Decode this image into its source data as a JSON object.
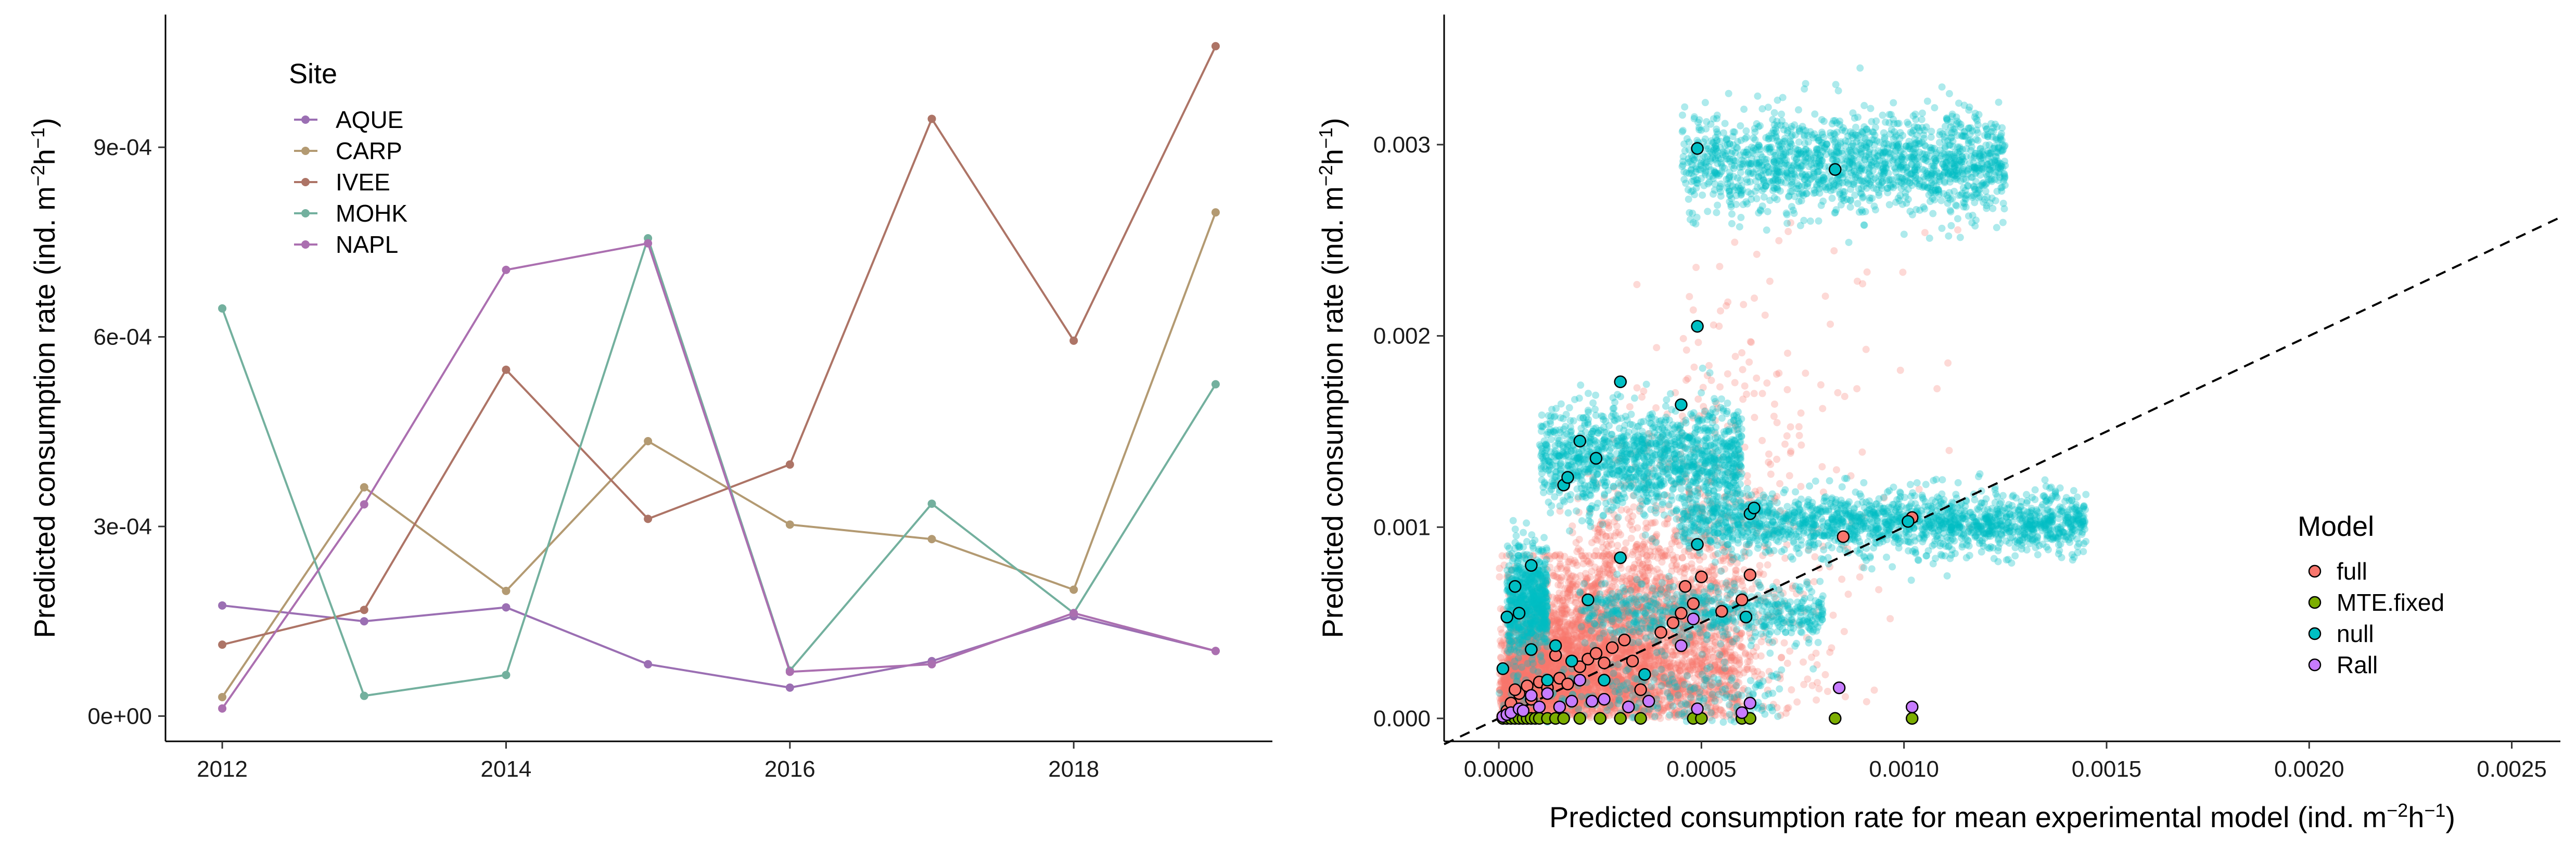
{
  "chart_data": [
    {
      "type": "line",
      "title": "",
      "xlabel": "",
      "ylabel": "Predicted consumption rate (ind. m⁻²h⁻¹)",
      "x_ticks": [
        "2012",
        "2014",
        "2016",
        "2018"
      ],
      "y_ticks": [
        "0e+00",
        "3e-04",
        "6e-04",
        "9e-04"
      ],
      "xlim": [
        2011.6,
        2019.4
      ],
      "ylim": [
        -4e-05,
        0.00111
      ],
      "legend": {
        "title": "Site",
        "placement": "top-left"
      },
      "x": [
        2012,
        2013,
        2014,
        2015,
        2016,
        2017,
        2018,
        2019
      ],
      "series": [
        {
          "name": "AQUE",
          "color": "#9b6fb3",
          "values": [
            0.000175,
            0.00015,
            0.000172,
            8.2e-05,
            4.5e-05,
            8.7e-05,
            0.000158,
            0.000103
          ]
        },
        {
          "name": "CARP",
          "color": "#b39a72",
          "values": [
            3e-05,
            0.000362,
            0.000198,
            0.000435,
            0.000303,
            0.00028,
            0.0002,
            0.000797
          ]
        },
        {
          "name": "IVEE",
          "color": "#ad7466",
          "values": [
            0.000113,
            0.000168,
            0.000548,
            0.000312,
            0.000398,
            0.000945,
            0.000594,
            0.00106
          ]
        },
        {
          "name": "MOHK",
          "color": "#73b09e",
          "values": [
            0.000645,
            3.2e-05,
            6.5e-05,
            0.000756,
            7.2e-05,
            0.000336,
            0.000163,
            0.000525
          ]
        },
        {
          "name": "NAPL",
          "color": "#ab6fb0",
          "values": [
            1.2e-05,
            0.000335,
            0.000706,
            0.000748,
            7e-05,
            8.2e-05,
            0.000163,
            0.000103
          ]
        }
      ]
    },
    {
      "type": "scatter",
      "title": "",
      "xlabel": "Predicted consumption rate for mean experimental model (ind. m⁻²h⁻¹)",
      "ylabel": "Predicted consumption rate (ind. m⁻²h⁻¹)",
      "x_ticks": [
        "0.0000",
        "0.0005",
        "0.0010",
        "0.0015",
        "0.0020",
        "0.0025"
      ],
      "y_ticks": [
        "0.000",
        "0.001",
        "0.002",
        "0.003"
      ],
      "xlim": [
        -0.000135,
        0.00262
      ],
      "ylim": [
        -0.00012,
        0.00368
      ],
      "reference_line": {
        "style": "dashed",
        "slope": 1,
        "intercept": 0
      },
      "legend": {
        "title": "Model",
        "placement": "right"
      },
      "series": [
        {
          "name": "full",
          "color": "#f8766d"
        },
        {
          "name": "MTE.fixed",
          "color": "#7cae00"
        },
        {
          "name": "null",
          "color": "#00bfc4"
        },
        {
          "name": "Rall",
          "color": "#c77cff"
        }
      ],
      "background_clouds": [
        {
          "series": "full",
          "description_count": 5000,
          "x_range": [
            0.0,
            0.0016
          ],
          "y_range": [
            0.0,
            0.0025
          ]
        },
        {
          "series": "null",
          "description_count": 4000,
          "x_range": [
            0.0,
            0.0016
          ],
          "y_range": [
            0.0,
            0.0035
          ]
        }
      ],
      "points": {
        "full": [
          [
            1e-05,
            1e-05
          ],
          [
            2e-05,
            4e-05
          ],
          [
            3e-05,
            8e-05
          ],
          [
            5e-05,
            0.00013
          ],
          [
            7e-05,
            0.00017
          ],
          [
            0.0001,
            0.00019
          ],
          [
            0.00012,
            0.00016
          ],
          [
            0.00015,
            0.00021
          ],
          [
            0.00017,
            0.00018
          ],
          [
            0.0002,
            0.00027
          ],
          [
            0.00022,
            0.00031
          ],
          [
            0.00024,
            0.00034
          ],
          [
            0.00028,
            0.00037
          ],
          [
            0.00031,
            0.00041
          ],
          [
            0.00033,
            0.0003
          ],
          [
            0.00035,
            0.00015
          ],
          [
            0.0004,
            0.00045
          ],
          [
            0.00043,
            0.0005
          ],
          [
            0.00045,
            0.00055
          ],
          [
            0.00048,
            0.0006
          ],
          [
            0.0005,
            0.00074
          ],
          [
            0.00046,
            0.00069
          ],
          [
            0.00055,
            0.00056
          ],
          [
            0.0006,
            0.00062
          ],
          [
            0.00062,
            0.00075
          ],
          [
            0.00085,
            0.00095
          ],
          [
            0.00102,
            0.00105
          ],
          [
            4e-05,
            0.00015
          ],
          [
            8e-05,
            0.0001
          ],
          [
            0.00014,
            0.00033
          ],
          [
            0.00026,
            0.00029
          ]
        ],
        "MTE.fixed": [
          [
            1e-05,
            0.0
          ],
          [
            2e-05,
            0.0
          ],
          [
            3e-05,
            0.0
          ],
          [
            4e-05,
            0.0
          ],
          [
            5e-05,
            0.0
          ],
          [
            6e-05,
            0.0
          ],
          [
            7e-05,
            0.0
          ],
          [
            8e-05,
            0.0
          ],
          [
            9e-05,
            0.0
          ],
          [
            0.0001,
            0.0
          ],
          [
            0.00012,
            0.0
          ],
          [
            0.00014,
            0.0
          ],
          [
            0.00016,
            0.0
          ],
          [
            0.0002,
            0.0
          ],
          [
            0.00025,
            0.0
          ],
          [
            0.0003,
            0.0
          ],
          [
            0.00035,
            0.0
          ],
          [
            0.00048,
            0.0
          ],
          [
            0.0005,
            0.0
          ],
          [
            0.0006,
            0.0
          ],
          [
            0.00062,
            0.0
          ],
          [
            0.00083,
            0.0
          ],
          [
            0.00102,
            0.0
          ]
        ],
        "null": [
          [
            1e-05,
            0.00026
          ],
          [
            2e-05,
            0.00053
          ],
          [
            4e-05,
            0.00069
          ],
          [
            5e-05,
            0.00055
          ],
          [
            8e-05,
            0.0008
          ],
          [
            8e-05,
            0.00036
          ],
          [
            0.00012,
            0.0002
          ],
          [
            0.00014,
            0.00038
          ],
          [
            0.00016,
            0.00122
          ],
          [
            0.00017,
            0.00126
          ],
          [
            0.00018,
            0.0003
          ],
          [
            0.0002,
            0.00145
          ],
          [
            0.00022,
            0.00062
          ],
          [
            0.00024,
            0.00136
          ],
          [
            0.00026,
            0.0002
          ],
          [
            0.0003,
            0.00084
          ],
          [
            0.0003,
            0.00176
          ],
          [
            0.00036,
            0.00023
          ],
          [
            0.00045,
            0.00164
          ],
          [
            0.00049,
            0.00205
          ],
          [
            0.00049,
            0.00091
          ],
          [
            0.00049,
            0.00298
          ],
          [
            0.00061,
            0.00053
          ],
          [
            0.00062,
            0.00107
          ],
          [
            0.00063,
            0.0011
          ],
          [
            0.00083,
            0.00287
          ],
          [
            0.00101,
            0.00103
          ]
        ],
        "Rall": [
          [
            1e-05,
            1e-05
          ],
          [
            2e-05,
            2e-05
          ],
          [
            3e-05,
            3e-05
          ],
          [
            5e-05,
            5e-05
          ],
          [
            6e-05,
            4e-05
          ],
          [
            8e-05,
            0.00012
          ],
          [
            0.0001,
            6e-05
          ],
          [
            0.00012,
            0.00013
          ],
          [
            0.00015,
            6e-05
          ],
          [
            0.00018,
            9e-05
          ],
          [
            0.0002,
            0.0002
          ],
          [
            0.00023,
            9e-05
          ],
          [
            0.00026,
            0.0001
          ],
          [
            0.00032,
            6e-05
          ],
          [
            0.00037,
            9e-05
          ],
          [
            0.00045,
            0.00038
          ],
          [
            0.00048,
            0.00052
          ],
          [
            0.00049,
            5e-05
          ],
          [
            0.0006,
            3e-05
          ],
          [
            0.00062,
            8e-05
          ],
          [
            0.00084,
            0.00016
          ],
          [
            0.00102,
            6e-05
          ]
        ]
      }
    }
  ]
}
